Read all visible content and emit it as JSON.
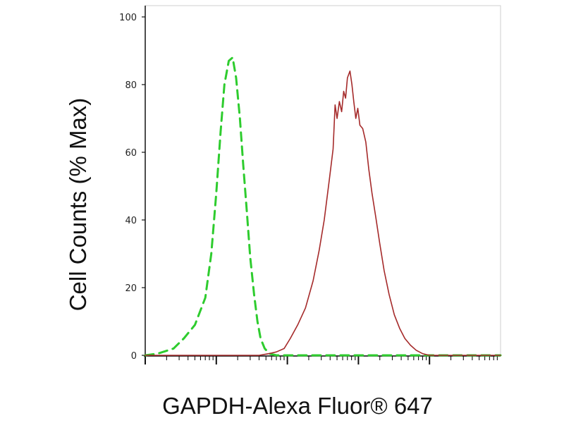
{
  "chart_data": {
    "type": "line",
    "title": "",
    "xlabel": "GAPDH-Alexa Fluor® 647",
    "ylabel": "Cell Counts (% Max)",
    "x_scale": "log",
    "xlim": [
      1,
      100000
    ],
    "ylim": [
      0,
      100
    ],
    "y_ticks": [
      "0",
      "20",
      "40",
      "60",
      "80",
      "100"
    ],
    "x_tick_labels": [],
    "grid": false,
    "legend": "none",
    "series": [
      {
        "style": "dashed",
        "color": "#2ecc2e",
        "x": [
          1,
          1.5,
          2.5,
          3.5,
          5,
          7,
          8.5,
          10,
          11.5,
          13,
          15,
          17,
          19,
          21.5,
          24,
          27,
          30,
          34,
          38,
          42,
          48,
          56,
          70,
          100,
          1000,
          10000,
          100000
        ],
        "y": [
          0,
          0.5,
          2,
          5,
          9,
          17,
          30,
          48,
          66,
          80,
          87,
          88,
          82,
          70,
          56,
          42,
          29,
          18,
          10,
          5,
          2,
          0.5,
          0,
          0,
          0,
          0,
          0
        ]
      },
      {
        "style": "solid",
        "color": "#a52a2a",
        "x": [
          1,
          10,
          40,
          55,
          70,
          90,
          110,
          140,
          180,
          230,
          280,
          330,
          390,
          440,
          470,
          500,
          540,
          580,
          620,
          660,
          700,
          760,
          810,
          860,
          920,
          980,
          1050,
          1150,
          1270,
          1400,
          1550,
          1750,
          2000,
          2300,
          2700,
          3200,
          3800,
          4500,
          5400,
          6500,
          8000,
          10000,
          13000,
          17000,
          23000,
          30000,
          45000,
          100000
        ],
        "y": [
          0,
          0,
          0,
          0.5,
          1,
          2,
          5,
          9,
          14,
          22,
          31,
          40,
          52,
          61,
          74,
          70,
          75,
          72,
          78,
          76,
          82,
          84,
          80,
          75,
          70,
          73,
          68,
          67,
          63,
          55,
          48,
          41,
          33,
          25,
          18,
          12,
          8,
          5,
          3,
          1.5,
          0.5,
          0,
          0,
          0,
          0,
          0,
          0,
          0
        ]
      }
    ]
  }
}
